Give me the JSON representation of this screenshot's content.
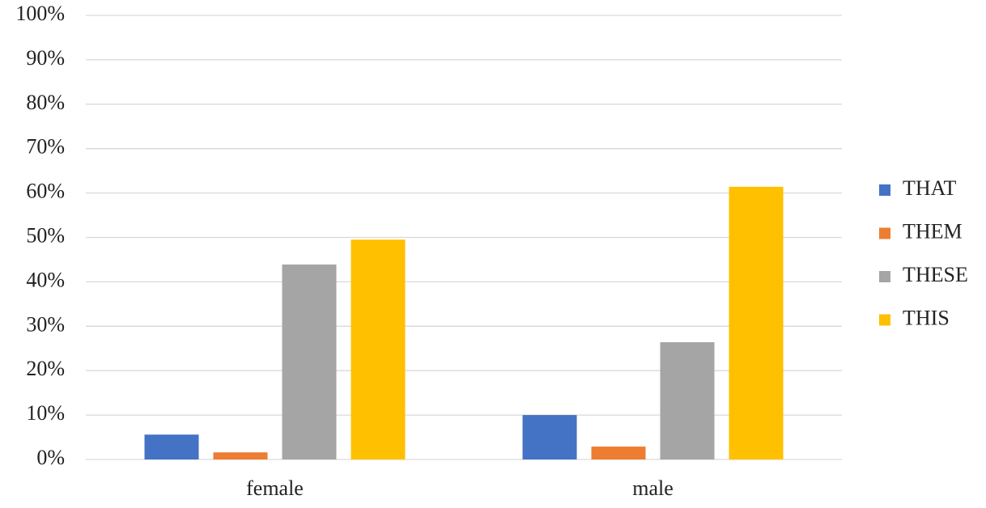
{
  "chart_data": {
    "type": "bar",
    "categories": [
      "female",
      "male"
    ],
    "series": [
      {
        "name": "THAT",
        "color": "#4472c4",
        "values": [
          5.6,
          10.0
        ]
      },
      {
        "name": "THEM",
        "color": "#ed7d31",
        "values": [
          1.6,
          2.9
        ]
      },
      {
        "name": "THESE",
        "color": "#a5a5a5",
        "values": [
          43.9,
          26.4
        ]
      },
      {
        "name": "THIS",
        "color": "#ffc000",
        "values": [
          49.5,
          61.4
        ]
      }
    ],
    "ylim": [
      0,
      100
    ],
    "yticks": [
      {
        "value": 0,
        "label": "0%"
      },
      {
        "value": 10,
        "label": "10%"
      },
      {
        "value": 20,
        "label": "20%"
      },
      {
        "value": 30,
        "label": "30%"
      },
      {
        "value": 40,
        "label": "40%"
      },
      {
        "value": 50,
        "label": "50%"
      },
      {
        "value": 60,
        "label": "60%"
      },
      {
        "value": 70,
        "label": "70%"
      },
      {
        "value": 80,
        "label": "80%"
      },
      {
        "value": 90,
        "label": "90%"
      },
      {
        "value": 100,
        "label": "100%"
      }
    ],
    "grid": true,
    "legend": "right"
  }
}
